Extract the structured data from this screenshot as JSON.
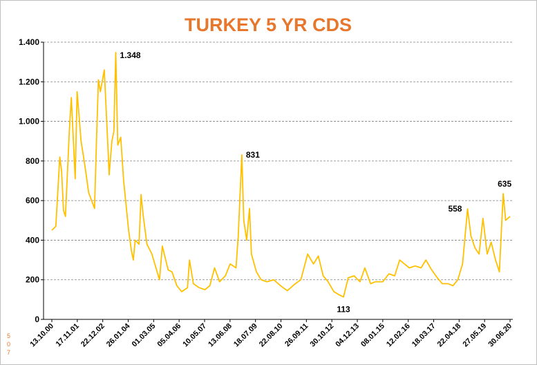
{
  "chart_data": {
    "type": "line",
    "title": "TURKEY 5 YR CDS",
    "footnote": "507",
    "ylim": [
      0,
      1400
    ],
    "yticks": [
      0,
      200,
      400,
      600,
      800,
      {
        "value": 1000,
        "label": "1.000"
      },
      {
        "value": 1200,
        "label": "1.200"
      },
      {
        "value": 1400,
        "label": "1.400"
      }
    ],
    "xlim": [
      "13.10.00",
      "30.06.20"
    ],
    "xticks": [
      "13.10.00",
      "17.11.01",
      "22.12.02",
      "26.01.04",
      "01.03.05",
      "05.04.06",
      "10.05.07",
      "13.06.08",
      "18.07.09",
      "22.08.10",
      "26.09.11",
      "30.10.12",
      "04.12.13",
      "08.01.15",
      "12.02.16",
      "18.03.17",
      "22.04.18",
      "27.05.19",
      "30.06.20"
    ],
    "grid": true,
    "series": [
      {
        "color": "#FFC000",
        "x": [
          "13.10.00",
          "15.12.00",
          "15.02.01",
          "15.03.01",
          "15.04.01",
          "15.05.01",
          "15.07.01",
          "15.08.01",
          "15.10.01",
          "15.11.01",
          "15.01.02",
          "15.03.02",
          "15.05.02",
          "15.08.02",
          "15.09.02",
          "15.10.02",
          "15.11.02",
          "15.01.03",
          "15.03.03",
          "01.04.03",
          "15.05.03",
          "15.06.03",
          "15.07.03",
          "15.08.03",
          "01.10.03",
          "15.11.03",
          "01.02.04",
          "15.03.04",
          "15.04.04",
          "15.05.04",
          "15.07.04",
          "15.08.04",
          "15.09.04",
          "15.11.04",
          "01.02.05",
          "15.04.05",
          "01.06.05",
          "15.07.05",
          "15.10.05",
          "15.12.05",
          "01.03.06",
          "15.05.06",
          "15.08.06",
          "15.09.06",
          "15.11.06",
          "15.02.07",
          "15.05.07",
          "01.08.07",
          "15.10.07",
          "01.01.08",
          "01.04.08",
          "15.06.08",
          "15.09.08",
          "20.10.08",
          "15.12.08",
          "15.01.09",
          "01.03.09",
          "15.04.09",
          "15.05.09",
          "01.08.09",
          "15.10.09",
          "15.01.10",
          "01.05.10",
          "15.08.10",
          "01.12.10",
          "15.03.11",
          "01.07.11",
          "15.10.11",
          "15.01.12",
          "01.04.12",
          "15.06.12",
          "01.09.12",
          "01.12.12",
          "15.02.13",
          "01.05.13",
          "15.07.13",
          "15.10.13",
          "15.01.14",
          "01.04.14",
          "01.07.14",
          "15.09.14",
          "08.01.15",
          "15.04.15",
          "15.07.15",
          "01.10.15",
          "15.12.15",
          "01.03.16",
          "01.06.16",
          "01.09.16",
          "15.11.16",
          "15.02.17",
          "15.05.17",
          "01.08.17",
          "01.11.17",
          "15.01.18",
          "01.04.18",
          "15.06.18",
          "01.09.18",
          "25.10.18",
          "28.12.18",
          "01.03.19",
          "01.05.19",
          "07.07.19",
          "07.09.19",
          "15.11.19",
          "15.01.20",
          "15.03.20",
          "22.04.20",
          "30.06.20"
        ],
        "values": [
          450,
          470,
          820,
          750,
          550,
          520,
          950,
          1120,
          710,
          1150,
          900,
          780,
          640,
          560,
          900,
          1210,
          1150,
          1260,
          860,
          730,
          900,
          950,
          1348,
          880,
          920,
          700,
          450,
          350,
          300,
          400,
          380,
          630,
          530,
          380,
          330,
          250,
          200,
          370,
          250,
          240,
          170,
          140,
          160,
          300,
          180,
          160,
          150,
          170,
          260,
          190,
          220,
          280,
          260,
          420,
          831,
          500,
          400,
          560,
          330,
          240,
          200,
          190,
          200,
          170,
          145,
          175,
          200,
          330,
          280,
          320,
          220,
          190,
          140,
          125,
          113,
          210,
          220,
          190,
          260,
          180,
          190,
          190,
          230,
          220,
          300,
          280,
          260,
          270,
          260,
          300,
          250,
          210,
          180,
          180,
          170,
          200,
          280,
          558,
          420,
          360,
          330,
          510,
          330,
          390,
          300,
          240,
          635,
          500,
          520
        ]
      }
    ],
    "annotations": [
      {
        "x": "15.07.03",
        "y": 1348,
        "label": "1.348"
      },
      {
        "x": "15.12.08",
        "y": 831,
        "label": "831"
      },
      {
        "x": "01.05.13",
        "y": 113,
        "label": "113"
      },
      {
        "x": "01.09.18",
        "y": 558,
        "label": "558"
      },
      {
        "x": "15.03.20",
        "y": 635,
        "label": "635"
      }
    ]
  }
}
